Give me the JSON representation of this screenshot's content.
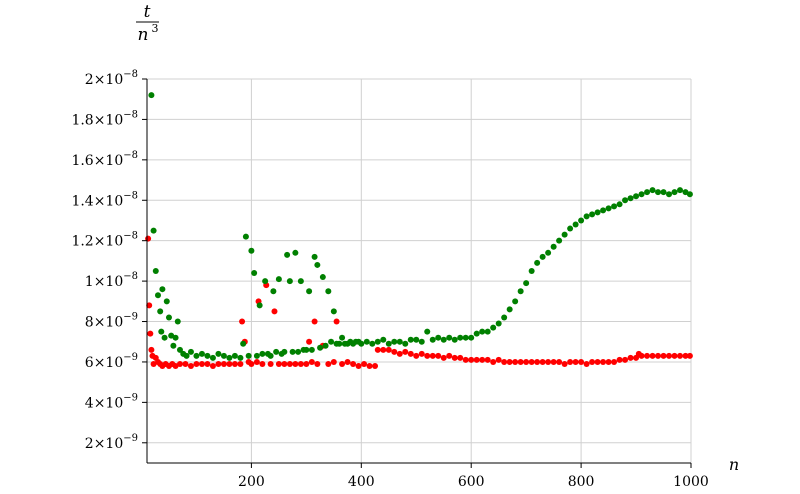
{
  "chart_data": {
    "type": "scatter",
    "title": "",
    "xlabel": "n",
    "ylabel_numerator": "t",
    "ylabel_denominator": "n",
    "ylabel_denominator_exponent": "3",
    "xlim": [
      10,
      1000
    ],
    "ylim": [
      1e-09,
      2e-08
    ],
    "grid": true,
    "x_ticks": [
      {
        "value": 200,
        "label": "200"
      },
      {
        "value": 400,
        "label": "400"
      },
      {
        "value": 600,
        "label": "600"
      },
      {
        "value": 800,
        "label": "800"
      },
      {
        "value": 1000,
        "label": "1000"
      }
    ],
    "y_ticks": [
      {
        "value": 2e-09,
        "mantissa": "2",
        "base": "10",
        "exponent": "−9"
      },
      {
        "value": 4e-09,
        "mantissa": "4",
        "base": "10",
        "exponent": "−9"
      },
      {
        "value": 6e-09,
        "mantissa": "6",
        "base": "10",
        "exponent": "−9"
      },
      {
        "value": 8e-09,
        "mantissa": "8",
        "base": "10",
        "exponent": "−9"
      },
      {
        "value": 1e-08,
        "mantissa": "1",
        "base": "10",
        "exponent": "−8"
      },
      {
        "value": 1.2e-08,
        "mantissa": "1.2",
        "base": "10",
        "exponent": "−8"
      },
      {
        "value": 1.4e-08,
        "mantissa": "1.4",
        "base": "10",
        "exponent": "−8"
      },
      {
        "value": 1.6e-08,
        "mantissa": "1.6",
        "base": "10",
        "exponent": "−8"
      },
      {
        "value": 1.8e-08,
        "mantissa": "1.8",
        "base": "10",
        "exponent": "−8"
      },
      {
        "value": 2e-08,
        "mantissa": "2",
        "base": "10",
        "exponent": "−8"
      }
    ],
    "series": [
      {
        "color": "#ff0000",
        "points": [
          [
            12,
            1.21e-08
          ],
          [
            14,
            8.8e-09
          ],
          [
            16,
            7.4e-09
          ],
          [
            18,
            6.6e-09
          ],
          [
            20,
            6.3e-09
          ],
          [
            22,
            5.9e-09
          ],
          [
            26,
            6.2e-09
          ],
          [
            30,
            6e-09
          ],
          [
            34,
            5.9e-09
          ],
          [
            38,
            5.8e-09
          ],
          [
            44,
            5.9e-09
          ],
          [
            50,
            5.8e-09
          ],
          [
            56,
            5.9e-09
          ],
          [
            62,
            5.8e-09
          ],
          [
            70,
            5.9e-09
          ],
          [
            80,
            5.9e-09
          ],
          [
            90,
            5.8e-09
          ],
          [
            100,
            5.9e-09
          ],
          [
            110,
            5.9e-09
          ],
          [
            120,
            5.9e-09
          ],
          [
            130,
            5.8e-09
          ],
          [
            140,
            5.9e-09
          ],
          [
            150,
            5.9e-09
          ],
          [
            160,
            5.9e-09
          ],
          [
            170,
            5.9e-09
          ],
          [
            180,
            5.9e-09
          ],
          [
            183,
            8e-09
          ],
          [
            188,
            7e-09
          ],
          [
            195,
            6e-09
          ],
          [
            200,
            5.9e-09
          ],
          [
            210,
            6e-09
          ],
          [
            213,
            9e-09
          ],
          [
            220,
            5.9e-09
          ],
          [
            227,
            9.8e-09
          ],
          [
            235,
            5.9e-09
          ],
          [
            242,
            8.5e-09
          ],
          [
            250,
            5.9e-09
          ],
          [
            260,
            5.9e-09
          ],
          [
            270,
            5.9e-09
          ],
          [
            280,
            5.9e-09
          ],
          [
            290,
            5.9e-09
          ],
          [
            300,
            5.9e-09
          ],
          [
            305,
            7e-09
          ],
          [
            310,
            6e-09
          ],
          [
            315,
            8e-09
          ],
          [
            320,
            5.9e-09
          ],
          [
            330,
            6.8e-09
          ],
          [
            340,
            5.9e-09
          ],
          [
            350,
            6e-09
          ],
          [
            355,
            8e-09
          ],
          [
            365,
            5.9e-09
          ],
          [
            375,
            6e-09
          ],
          [
            385,
            5.9e-09
          ],
          [
            395,
            5.8e-09
          ],
          [
            405,
            5.9e-09
          ],
          [
            415,
            5.8e-09
          ],
          [
            425,
            5.8e-09
          ],
          [
            430,
            6.6e-09
          ],
          [
            440,
            6.6e-09
          ],
          [
            450,
            6.6e-09
          ],
          [
            460,
            6.5e-09
          ],
          [
            470,
            6.4e-09
          ],
          [
            480,
            6.5e-09
          ],
          [
            490,
            6.4e-09
          ],
          [
            500,
            6.3e-09
          ],
          [
            510,
            6.4e-09
          ],
          [
            520,
            6.3e-09
          ],
          [
            530,
            6.3e-09
          ],
          [
            540,
            6.3e-09
          ],
          [
            550,
            6.2e-09
          ],
          [
            560,
            6.3e-09
          ],
          [
            570,
            6.2e-09
          ],
          [
            580,
            6.2e-09
          ],
          [
            590,
            6.1e-09
          ],
          [
            600,
            6.1e-09
          ],
          [
            610,
            6.1e-09
          ],
          [
            620,
            6.1e-09
          ],
          [
            630,
            6.1e-09
          ],
          [
            640,
            6e-09
          ],
          [
            650,
            6.1e-09
          ],
          [
            660,
            6e-09
          ],
          [
            670,
            6e-09
          ],
          [
            680,
            6e-09
          ],
          [
            690,
            6e-09
          ],
          [
            700,
            6e-09
          ],
          [
            710,
            6e-09
          ],
          [
            720,
            6e-09
          ],
          [
            730,
            6e-09
          ],
          [
            740,
            6e-09
          ],
          [
            750,
            6e-09
          ],
          [
            760,
            6e-09
          ],
          [
            770,
            5.9e-09
          ],
          [
            780,
            6e-09
          ],
          [
            790,
            6e-09
          ],
          [
            800,
            6e-09
          ],
          [
            810,
            5.9e-09
          ],
          [
            820,
            6e-09
          ],
          [
            830,
            6e-09
          ],
          [
            840,
            6e-09
          ],
          [
            850,
            6e-09
          ],
          [
            860,
            6e-09
          ],
          [
            870,
            6.1e-09
          ],
          [
            880,
            6.1e-09
          ],
          [
            890,
            6.2e-09
          ],
          [
            900,
            6.2e-09
          ],
          [
            905,
            6.4e-09
          ],
          [
            910,
            6.3e-09
          ],
          [
            920,
            6.3e-09
          ],
          [
            930,
            6.3e-09
          ],
          [
            940,
            6.3e-09
          ],
          [
            950,
            6.3e-09
          ],
          [
            960,
            6.3e-09
          ],
          [
            970,
            6.3e-09
          ],
          [
            980,
            6.3e-09
          ],
          [
            990,
            6.3e-09
          ],
          [
            998,
            6.3e-09
          ]
        ]
      },
      {
        "color": "#008000",
        "points": [
          [
            18,
            1.92e-08
          ],
          [
            22,
            1.25e-08
          ],
          [
            26,
            1.05e-08
          ],
          [
            30,
            9.3e-09
          ],
          [
            34,
            8.5e-09
          ],
          [
            36,
            7.5e-09
          ],
          [
            38,
            9.6e-09
          ],
          [
            42,
            7.2e-09
          ],
          [
            46,
            9e-09
          ],
          [
            50,
            8.2e-09
          ],
          [
            54,
            7.3e-09
          ],
          [
            58,
            6.8e-09
          ],
          [
            62,
            7.2e-09
          ],
          [
            66,
            8e-09
          ],
          [
            70,
            6.6e-09
          ],
          [
            76,
            6.4e-09
          ],
          [
            82,
            6.3e-09
          ],
          [
            90,
            6.5e-09
          ],
          [
            100,
            6.3e-09
          ],
          [
            110,
            6.4e-09
          ],
          [
            120,
            6.3e-09
          ],
          [
            130,
            6.2e-09
          ],
          [
            140,
            6.4e-09
          ],
          [
            150,
            6.3e-09
          ],
          [
            160,
            6.2e-09
          ],
          [
            170,
            6.3e-09
          ],
          [
            180,
            6.2e-09
          ],
          [
            185,
            6.9e-09
          ],
          [
            190,
            1.22e-08
          ],
          [
            195,
            6.3e-09
          ],
          [
            200,
            1.15e-08
          ],
          [
            205,
            1.04e-08
          ],
          [
            210,
            6.3e-09
          ],
          [
            215,
            8.8e-09
          ],
          [
            220,
            6.4e-09
          ],
          [
            225,
            1e-08
          ],
          [
            230,
            6.4e-09
          ],
          [
            235,
            6.3e-09
          ],
          [
            240,
            9.5e-09
          ],
          [
            245,
            6.5e-09
          ],
          [
            250,
            1.01e-08
          ],
          [
            255,
            6.4e-09
          ],
          [
            260,
            6.5e-09
          ],
          [
            265,
            1.13e-08
          ],
          [
            270,
            1e-08
          ],
          [
            275,
            6.5e-09
          ],
          [
            280,
            1.14e-08
          ],
          [
            285,
            6.5e-09
          ],
          [
            290,
            1e-08
          ],
          [
            295,
            6.6e-09
          ],
          [
            300,
            6.6e-09
          ],
          [
            305,
            9.5e-09
          ],
          [
            310,
            6.6e-09
          ],
          [
            315,
            1.12e-08
          ],
          [
            320,
            1.08e-08
          ],
          [
            325,
            6.7e-09
          ],
          [
            330,
            1.02e-08
          ],
          [
            335,
            6.8e-09
          ],
          [
            340,
            9.5e-09
          ],
          [
            345,
            7e-09
          ],
          [
            350,
            8.5e-09
          ],
          [
            355,
            6.9e-09
          ],
          [
            360,
            6.9e-09
          ],
          [
            365,
            7.2e-09
          ],
          [
            370,
            6.9e-09
          ],
          [
            375,
            6.9e-09
          ],
          [
            380,
            7e-09
          ],
          [
            385,
            6.9e-09
          ],
          [
            390,
            7e-09
          ],
          [
            395,
            7e-09
          ],
          [
            400,
            6.9e-09
          ],
          [
            410,
            7e-09
          ],
          [
            420,
            6.9e-09
          ],
          [
            430,
            7e-09
          ],
          [
            440,
            7.1e-09
          ],
          [
            450,
            6.9e-09
          ],
          [
            460,
            7e-09
          ],
          [
            470,
            7e-09
          ],
          [
            480,
            6.9e-09
          ],
          [
            490,
            7.1e-09
          ],
          [
            500,
            7.1e-09
          ],
          [
            510,
            7e-09
          ],
          [
            520,
            7.5e-09
          ],
          [
            530,
            7.1e-09
          ],
          [
            540,
            7.2e-09
          ],
          [
            550,
            7.1e-09
          ],
          [
            560,
            7.2e-09
          ],
          [
            570,
            7.1e-09
          ],
          [
            580,
            7.2e-09
          ],
          [
            590,
            7.2e-09
          ],
          [
            600,
            7.2e-09
          ],
          [
            610,
            7.4e-09
          ],
          [
            620,
            7.5e-09
          ],
          [
            630,
            7.5e-09
          ],
          [
            640,
            7.7e-09
          ],
          [
            650,
            7.9e-09
          ],
          [
            660,
            8.2e-09
          ],
          [
            670,
            8.6e-09
          ],
          [
            680,
            9e-09
          ],
          [
            690,
            9.5e-09
          ],
          [
            700,
            9.9e-09
          ],
          [
            710,
            1.05e-08
          ],
          [
            720,
            1.09e-08
          ],
          [
            730,
            1.12e-08
          ],
          [
            740,
            1.14e-08
          ],
          [
            750,
            1.17e-08
          ],
          [
            760,
            1.2e-08
          ],
          [
            770,
            1.23e-08
          ],
          [
            780,
            1.26e-08
          ],
          [
            790,
            1.28e-08
          ],
          [
            800,
            1.3e-08
          ],
          [
            810,
            1.32e-08
          ],
          [
            820,
            1.33e-08
          ],
          [
            830,
            1.34e-08
          ],
          [
            840,
            1.35e-08
          ],
          [
            850,
            1.36e-08
          ],
          [
            860,
            1.37e-08
          ],
          [
            870,
            1.38e-08
          ],
          [
            880,
            1.4e-08
          ],
          [
            890,
            1.41e-08
          ],
          [
            900,
            1.42e-08
          ],
          [
            910,
            1.43e-08
          ],
          [
            920,
            1.44e-08
          ],
          [
            930,
            1.45e-08
          ],
          [
            940,
            1.44e-08
          ],
          [
            950,
            1.44e-08
          ],
          [
            960,
            1.43e-08
          ],
          [
            970,
            1.44e-08
          ],
          [
            980,
            1.45e-08
          ],
          [
            990,
            1.44e-08
          ],
          [
            998,
            1.43e-08
          ]
        ]
      }
    ]
  }
}
